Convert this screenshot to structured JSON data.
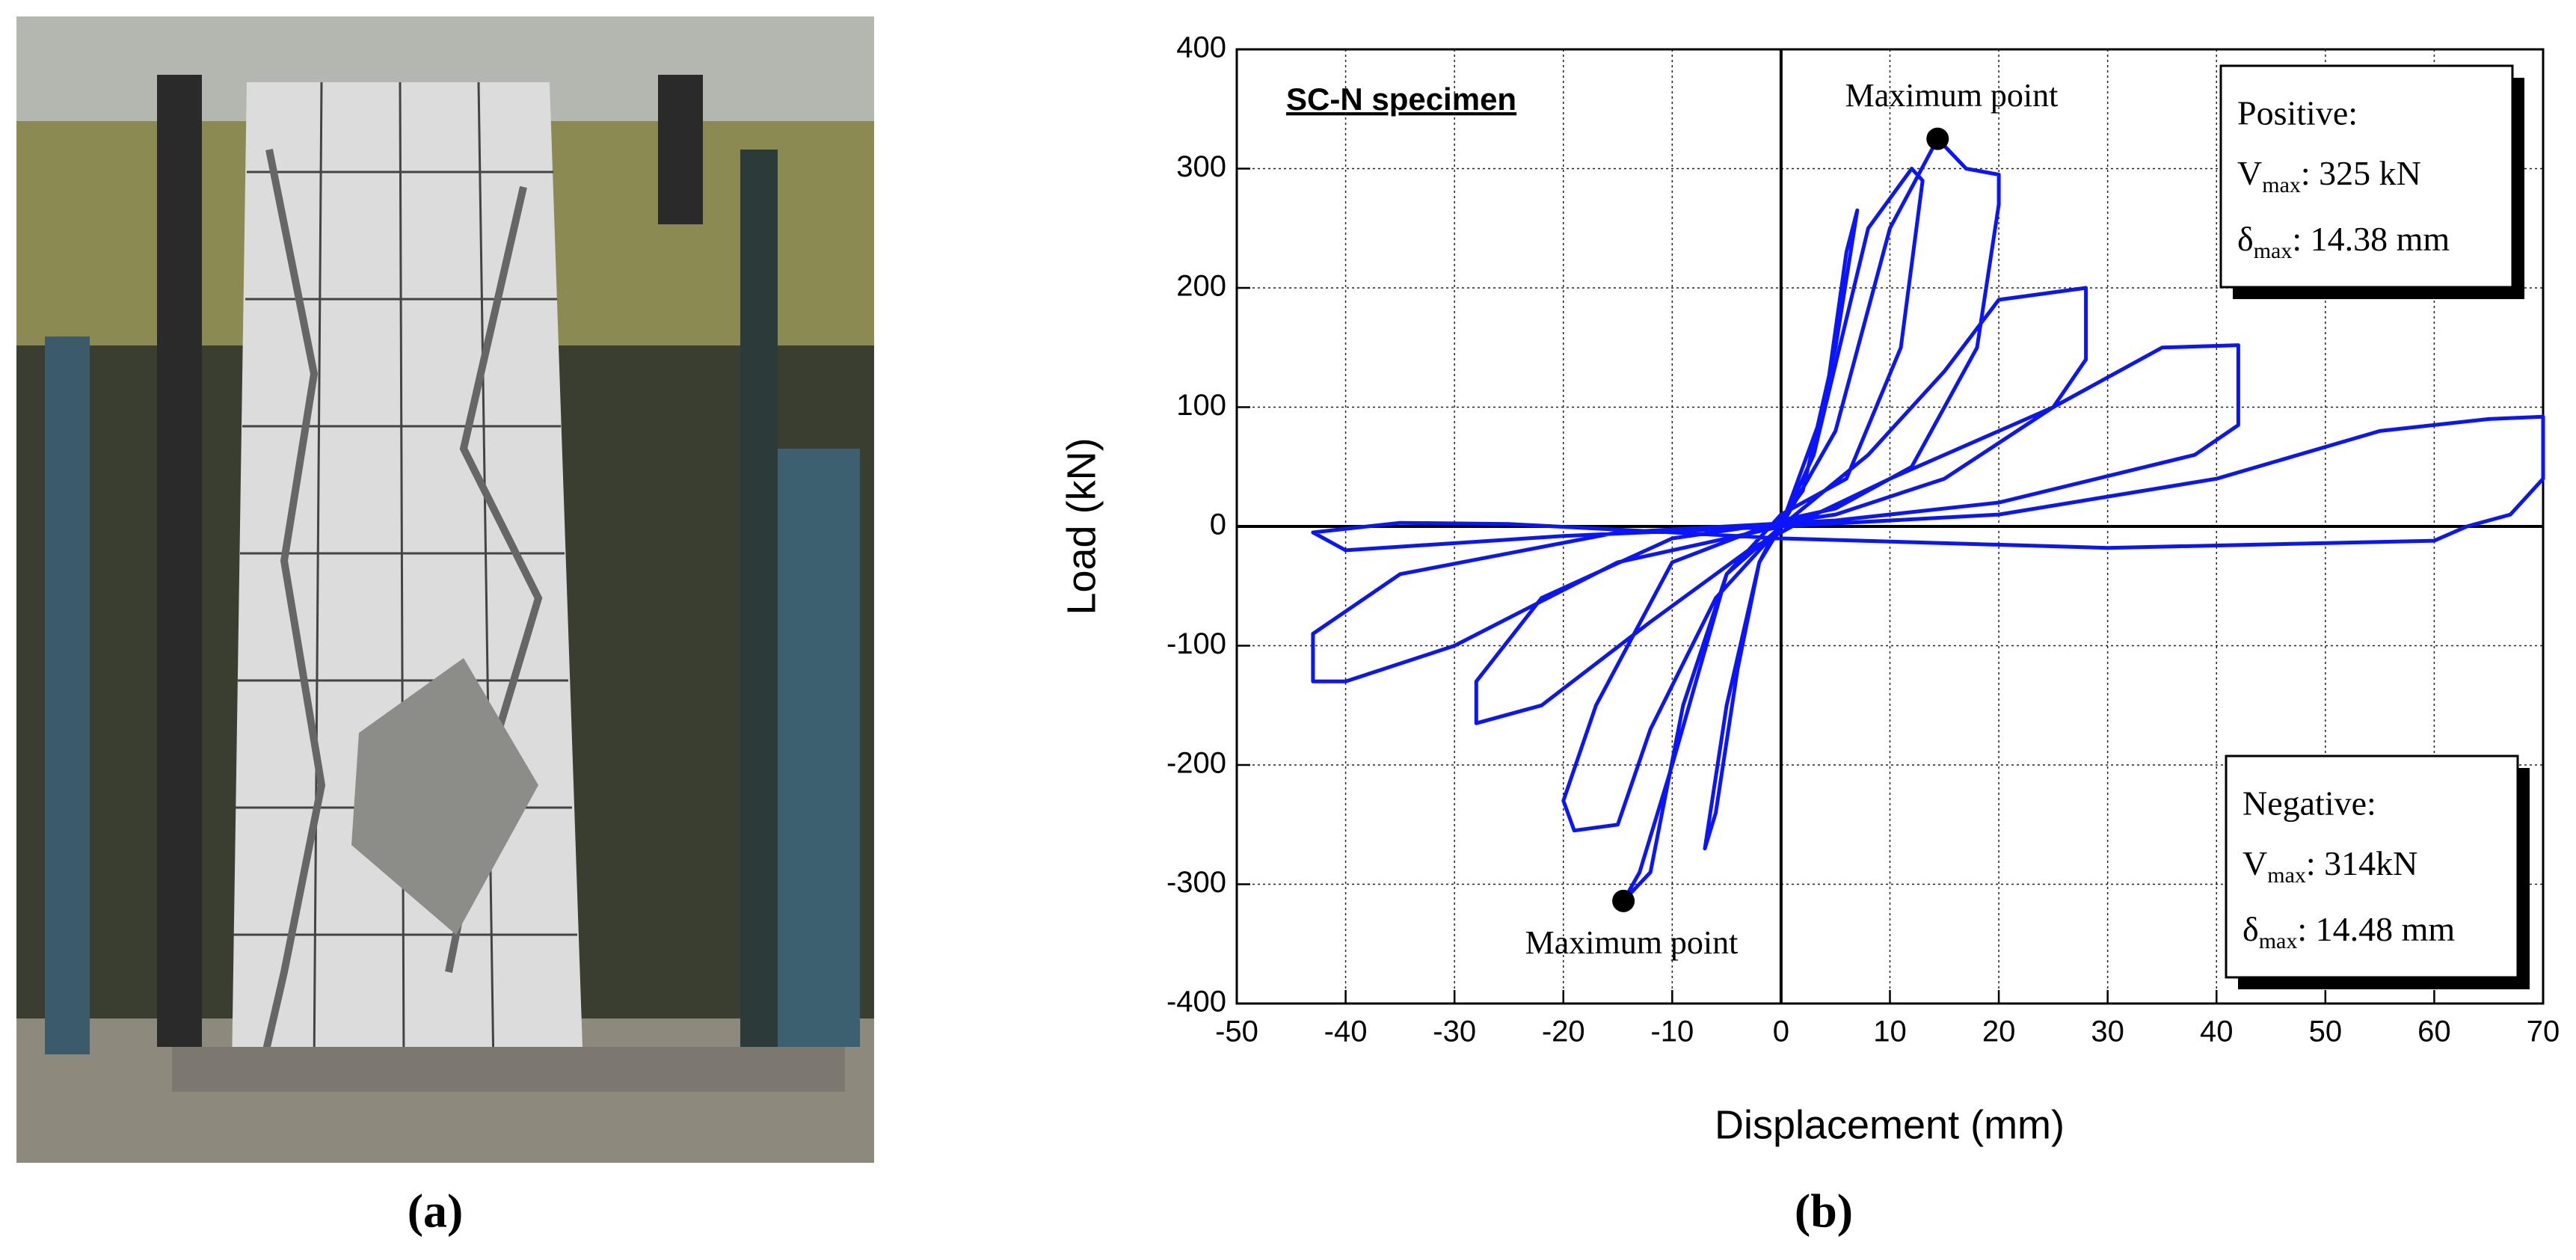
{
  "figure": {
    "panel_a_label": "(a)",
    "panel_b_label": "(b)"
  },
  "chart_data": {
    "type": "line",
    "xlabel": "Displacement (mm)",
    "ylabel": "Load (kN)",
    "annotations": {
      "specimen": "SC-N specimen",
      "max_label_positive": "Maximum point",
      "max_label_negative": "Maximum point"
    },
    "boxes": [
      {
        "title": "Positive:",
        "lines": [
          {
            "symbol": "V",
            "subscript": "max",
            "text": ": 325 kN"
          },
          {
            "symbol": "δ",
            "subscript": "max",
            "text": ": 14.38 mm"
          }
        ]
      },
      {
        "title": "Negative:",
        "lines": [
          {
            "symbol": "V",
            "subscript": "max",
            "text": ": 314kN"
          },
          {
            "symbol": "δ",
            "subscript": "max",
            "text": ": 14.48 mm"
          }
        ]
      }
    ],
    "xlim": [
      -50,
      70
    ],
    "ylim": [
      -400,
      400
    ],
    "xticks": [
      -50,
      -40,
      -30,
      -20,
      -10,
      0,
      10,
      20,
      30,
      40,
      50,
      60,
      70
    ],
    "yticks": [
      -400,
      -300,
      -200,
      -100,
      0,
      100,
      200,
      300,
      400
    ],
    "grid": true,
    "series": [
      {
        "color": "#0a14ff",
        "x": [
          0,
          4,
          6,
          7,
          5,
          2,
          0,
          -2,
          -4,
          -6,
          -7,
          -5,
          -2,
          0,
          3,
          8,
          12,
          13,
          11,
          6,
          0,
          -5,
          -10,
          -13,
          -14.48,
          -12,
          -9,
          -5,
          0,
          5,
          10,
          14.38,
          17,
          20,
          20,
          18,
          12,
          5,
          0,
          -10,
          -17,
          -20,
          -19,
          -15,
          -12,
          -6,
          0,
          8,
          15,
          20,
          28,
          28,
          25,
          15,
          5,
          -10,
          -22,
          -28,
          -28,
          -22,
          -12,
          -3,
          2,
          10,
          25,
          35,
          42,
          42,
          38,
          20,
          5,
          -15,
          -35,
          -43,
          -43,
          -40,
          -30,
          -15,
          0,
          20,
          40,
          55,
          65,
          70,
          70,
          67,
          63,
          60,
          30,
          0,
          -10,
          -25,
          -35,
          -43,
          -40,
          -20,
          0
        ],
        "values": [
          0,
          100,
          230,
          265,
          150,
          30,
          5,
          -30,
          -120,
          -240,
          -270,
          -150,
          -30,
          0,
          60,
          250,
          300,
          290,
          150,
          40,
          10,
          -40,
          -200,
          -290,
          -314,
          -290,
          -150,
          -40,
          0,
          80,
          250,
          325,
          300,
          295,
          270,
          150,
          50,
          15,
          5,
          -30,
          -150,
          -230,
          -255,
          -250,
          -170,
          -60,
          0,
          60,
          130,
          190,
          200,
          140,
          100,
          40,
          10,
          -10,
          -60,
          -130,
          -165,
          -150,
          -80,
          -20,
          5,
          40,
          100,
          150,
          152,
          85,
          60,
          20,
          5,
          -5,
          -40,
          -90,
          -130,
          -130,
          -100,
          -30,
          0,
          10,
          40,
          80,
          90,
          92,
          40,
          10,
          0,
          -12,
          -18,
          -10,
          -5,
          2,
          3,
          -5,
          -20,
          -8,
          0
        ]
      }
    ],
    "max_points": {
      "color": "#000000",
      "x": [
        14.38,
        -14.48
      ],
      "values": [
        325,
        -314
      ]
    }
  }
}
